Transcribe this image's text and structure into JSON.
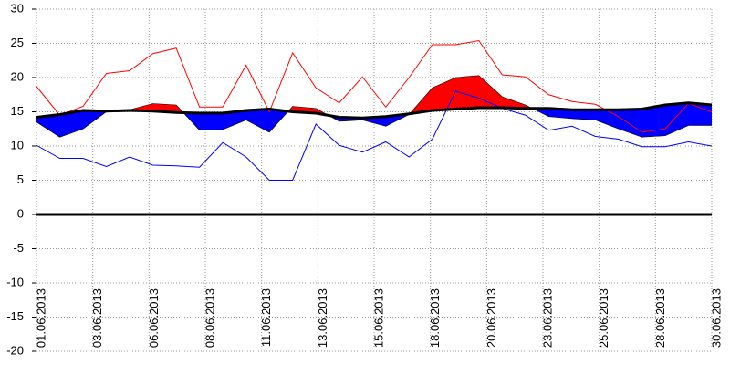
{
  "chart_data": {
    "type": "temperature-anomaly",
    "x": [
      1,
      2,
      3,
      4,
      5,
      6,
      7,
      8,
      9,
      10,
      11,
      12,
      13,
      14,
      15,
      16,
      17,
      18,
      19,
      20,
      21,
      22,
      23,
      24,
      25,
      26,
      27,
      28,
      29,
      30
    ],
    "xlim": [
      1,
      30
    ],
    "xticks": [
      {
        "value": 1,
        "label": "01.06.2013"
      },
      {
        "value": 3.4167,
        "label": "03.06.2013"
      },
      {
        "value": 5.8333,
        "label": "06.06.2013"
      },
      {
        "value": 8.25,
        "label": "08.06.2013"
      },
      {
        "value": 10.6667,
        "label": "11.06.2013"
      },
      {
        "value": 13.0833,
        "label": "13.06.2013"
      },
      {
        "value": 15.5,
        "label": "15.06.2013"
      },
      {
        "value": 17.9167,
        "label": "18.06.2013"
      },
      {
        "value": 20.3333,
        "label": "20.06.2013"
      },
      {
        "value": 22.75,
        "label": "23.06.2013"
      },
      {
        "value": 25.1667,
        "label": "25.06.2013"
      },
      {
        "value": 27.5833,
        "label": "28.06.2013"
      },
      {
        "value": 30,
        "label": "30.06.2013"
      }
    ],
    "ylim": [
      -20,
      30
    ],
    "yticks": [
      30,
      25,
      20,
      15,
      10,
      5,
      0,
      -5,
      -10,
      -15,
      -20
    ],
    "grid": true,
    "series": [
      {
        "color": "#ff0000",
        "values": [
          18.7,
          14.5,
          15.8,
          20.6,
          21,
          23.5,
          24.3,
          15.7,
          15.7,
          21.8,
          15,
          23.6,
          18.5,
          16.3,
          20.1,
          15.7,
          20,
          24.8,
          24.8,
          25.4,
          20.4,
          20.1,
          17.5,
          16.5,
          16.1,
          14.3,
          12,
          12.5,
          16.2,
          15
        ]
      },
      {
        "color": "#0000ff",
        "values": [
          10.1,
          8.2,
          8.2,
          7,
          8.4,
          7.2,
          7.1,
          6.9,
          10.5,
          8.4,
          5,
          5,
          13.2,
          10.1,
          9.1,
          10.6,
          8.4,
          11,
          18,
          17,
          15.5,
          14.5,
          12.3,
          12.9,
          11.4,
          11,
          9.9,
          9.9,
          10.6,
          10
        ]
      }
    ],
    "mean": [
      13.5,
      11.3,
      12.5,
      15,
      15.3,
      16.2,
      16,
      12.3,
      12.4,
      13.8,
      12,
      15.8,
      15.5,
      13.6,
      13.8,
      12.9,
      14.6,
      18.5,
      20,
      20.3,
      17.2,
      16,
      14.3,
      14,
      13.8,
      12.5,
      11.3,
      11.5,
      13,
      13
    ],
    "normal": [
      14.2,
      14.6,
      15.2,
      15.1,
      15.2,
      15.1,
      14.9,
      14.8,
      14.8,
      15.2,
      15.4,
      15,
      14.8,
      14.2,
      14.1,
      14.3,
      14.7,
      15.2,
      15.4,
      15.6,
      15.6,
      15.5,
      15.5,
      15.3,
      15.3,
      15.3,
      15.4,
      16,
      16.3,
      16
    ],
    "above_color": "#ff0000",
    "below_color": "#0000ff",
    "normal_color": "#000000"
  }
}
